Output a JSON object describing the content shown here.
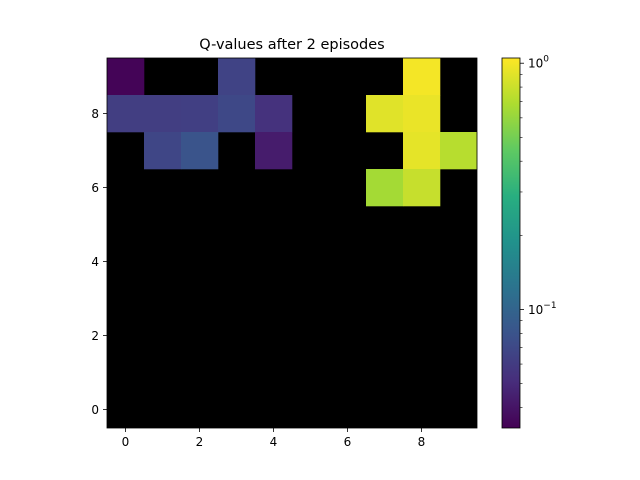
{
  "chart_data": {
    "type": "heatmap",
    "title": "Q-values after 2 episodes",
    "xlabel": "",
    "ylabel": "",
    "x_ticks": [
      "0",
      "2",
      "4",
      "6",
      "8"
    ],
    "y_ticks": [
      "0",
      "2",
      "4",
      "6",
      "8"
    ],
    "x_range": [
      -0.5,
      9.5
    ],
    "y_range": [
      -0.5,
      9.5
    ],
    "grid": false,
    "colormap": "viridis",
    "colorbar": {
      "scale": "log",
      "range": [
        0.033,
        1.05
      ],
      "ticks": [
        {
          "value": 1,
          "label": "10",
          "exp": "0"
        },
        {
          "value": 0.1,
          "label": "10",
          "exp": "−1"
        }
      ]
    },
    "masked_color": "#000000",
    "note_masked": "cells with zero value are drawn black",
    "cells": [
      {
        "x": 0,
        "y": 9,
        "value": 0.034
      },
      {
        "x": 3,
        "y": 9,
        "value": 0.066
      },
      {
        "x": 8,
        "y": 9,
        "value": 1.0
      },
      {
        "x": 0,
        "y": 8,
        "value": 0.062
      },
      {
        "x": 1,
        "y": 8,
        "value": 0.062
      },
      {
        "x": 2,
        "y": 8,
        "value": 0.063
      },
      {
        "x": 3,
        "y": 8,
        "value": 0.07
      },
      {
        "x": 4,
        "y": 8,
        "value": 0.054
      },
      {
        "x": 7,
        "y": 8,
        "value": 0.9
      },
      {
        "x": 8,
        "y": 8,
        "value": 0.95
      },
      {
        "x": 1,
        "y": 7,
        "value": 0.068
      },
      {
        "x": 2,
        "y": 7,
        "value": 0.08
      },
      {
        "x": 4,
        "y": 7,
        "value": 0.043
      },
      {
        "x": 8,
        "y": 7,
        "value": 0.92
      },
      {
        "x": 9,
        "y": 7,
        "value": 0.72
      },
      {
        "x": 7,
        "y": 6,
        "value": 0.65
      },
      {
        "x": 8,
        "y": 6,
        "value": 0.78
      }
    ]
  }
}
